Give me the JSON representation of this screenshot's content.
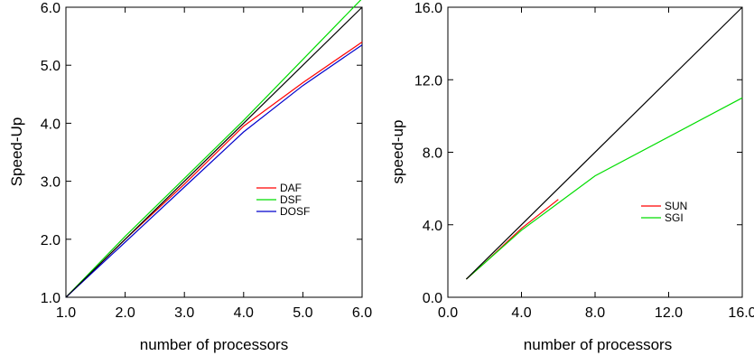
{
  "chart_data": [
    {
      "type": "line",
      "xlabel": "number of processors",
      "ylabel": "Speed-Up",
      "xlim": [
        1.0,
        6.0
      ],
      "ylim": [
        1.0,
        6.0
      ],
      "xticks": [
        "1.0",
        "2.0",
        "3.0",
        "4.0",
        "5.0",
        "6.0"
      ],
      "yticks": [
        "1.0",
        "2.0",
        "3.0",
        "4.0",
        "5.0",
        "6.0"
      ],
      "legend_position": "middle-right",
      "series": [
        {
          "name": "DAF",
          "color": "#ff0000",
          "x": [
            1,
            2,
            3,
            4,
            5,
            6
          ],
          "y": [
            1.0,
            2.0,
            2.95,
            3.95,
            4.7,
            5.4
          ]
        },
        {
          "name": "DSF",
          "color": "#00dd00",
          "x": [
            1,
            2,
            3,
            4,
            5,
            6
          ],
          "y": [
            1.0,
            2.05,
            3.05,
            4.05,
            5.1,
            6.15
          ]
        },
        {
          "name": "DOSF",
          "color": "#0000cc",
          "x": [
            1,
            2,
            3,
            4,
            5,
            6
          ],
          "y": [
            1.0,
            1.95,
            2.9,
            3.85,
            4.65,
            5.35
          ]
        },
        {
          "name": "",
          "color": "#000000",
          "x": [
            1,
            6
          ],
          "y": [
            1.0,
            6.0
          ]
        }
      ]
    },
    {
      "type": "line",
      "xlabel": "number of processors",
      "ylabel": "speed-up",
      "xlim": [
        0.0,
        16.0
      ],
      "ylim": [
        0.0,
        16.0
      ],
      "xticks": [
        "0.0",
        "4.0",
        "8.0",
        "12.0",
        "16.0"
      ],
      "yticks": [
        "0.0",
        "4.0",
        "8.0",
        "12.0",
        "16.0"
      ],
      "legend_position": "middle-right",
      "series": [
        {
          "name": "SUN",
          "color": "#ff0000",
          "x": [
            1,
            2,
            4,
            6
          ],
          "y": [
            1.0,
            1.9,
            3.8,
            5.4
          ]
        },
        {
          "name": "SGI",
          "color": "#00dd00",
          "x": [
            1,
            2,
            4,
            8,
            16
          ],
          "y": [
            1.0,
            1.9,
            3.7,
            6.7,
            11.0
          ]
        },
        {
          "name": "",
          "color": "#000000",
          "x": [
            1,
            16
          ],
          "y": [
            1.0,
            16.0
          ]
        }
      ]
    }
  ]
}
